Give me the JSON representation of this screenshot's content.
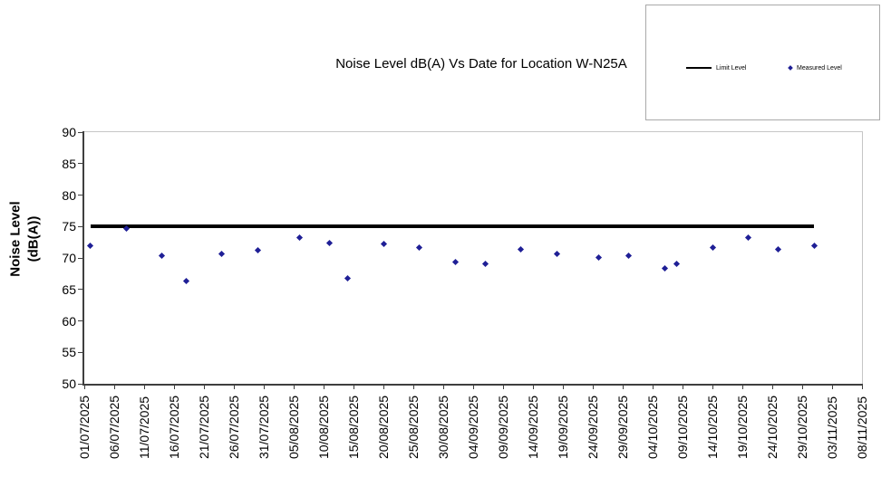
{
  "labels": {
    "y_axis_title_line1": "Noise Level",
    "y_axis_title_line2": "(dB(A))"
  },
  "chart_data": {
    "type": "scatter",
    "title": "Noise Level dB(A) Vs Date for Location W-N25A",
    "xlabel": "",
    "ylabel": "Noise Level (dB(A))",
    "ylim": [
      50,
      90
    ],
    "y_tick_step": 5,
    "grid": false,
    "legend_position": "top-right-box",
    "x_tick_labels": [
      "01/07/2025",
      "06/07/2025",
      "11/07/2025",
      "16/07/2025",
      "21/07/2025",
      "26/07/2025",
      "31/07/2025",
      "05/08/2025",
      "10/08/2025",
      "15/08/2025",
      "20/08/2025",
      "25/08/2025",
      "30/08/2025",
      "04/09/2025",
      "09/09/2025",
      "14/09/2025",
      "19/09/2025",
      "24/09/2025",
      "29/09/2025",
      "04/10/2025",
      "09/10/2025",
      "14/10/2025",
      "19/10/2025",
      "24/10/2025",
      "29/10/2025",
      "03/11/2025",
      "08/11/2025"
    ],
    "series": [
      {
        "name": "Limit Level",
        "type": "line",
        "color": "#000000",
        "points": [
          {
            "x": "02/07/2025",
            "y": 75
          },
          {
            "x": "31/10/2025",
            "y": 75
          }
        ]
      },
      {
        "name": "Measured Level",
        "type": "scatter",
        "marker": "diamond",
        "color": "#1f1f96",
        "points": [
          {
            "x": "02/07/2025",
            "y": 71.9
          },
          {
            "x": "08/07/2025",
            "y": 74.7
          },
          {
            "x": "14/07/2025",
            "y": 70.4
          },
          {
            "x": "18/07/2025",
            "y": 66.4
          },
          {
            "x": "24/07/2025",
            "y": 70.6
          },
          {
            "x": "30/07/2025",
            "y": 71.2
          },
          {
            "x": "06/08/2025",
            "y": 73.2
          },
          {
            "x": "11/08/2025",
            "y": 72.4
          },
          {
            "x": "14/08/2025",
            "y": 66.7
          },
          {
            "x": "20/08/2025",
            "y": 72.2
          },
          {
            "x": "26/08/2025",
            "y": 71.7
          },
          {
            "x": "01/09/2025",
            "y": 69.4
          },
          {
            "x": "06/09/2025",
            "y": 69.1
          },
          {
            "x": "12/09/2025",
            "y": 71.4
          },
          {
            "x": "18/09/2025",
            "y": 70.7
          },
          {
            "x": "25/09/2025",
            "y": 70.1
          },
          {
            "x": "30/09/2025",
            "y": 70.3
          },
          {
            "x": "06/10/2025",
            "y": 68.3
          },
          {
            "x": "08/10/2025",
            "y": 69.1
          },
          {
            "x": "14/10/2025",
            "y": 71.7
          },
          {
            "x": "20/10/2025",
            "y": 73.2
          },
          {
            "x": "25/10/2025",
            "y": 71.3
          },
          {
            "x": "31/10/2025",
            "y": 71.9
          }
        ]
      }
    ]
  }
}
